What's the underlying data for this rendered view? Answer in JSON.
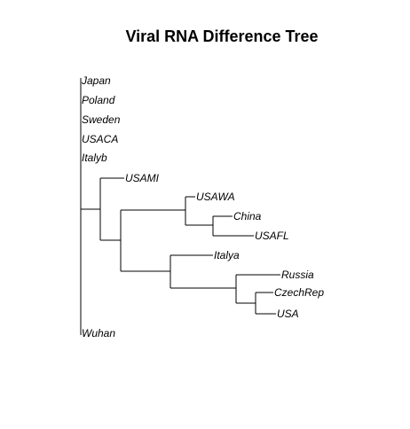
{
  "title": "Viral RNA Difference Tree",
  "line_color": "#000000",
  "leaves": [
    {
      "id": "japan",
      "label": "Japan"
    },
    {
      "id": "poland",
      "label": "Poland"
    },
    {
      "id": "sweden",
      "label": "Sweden"
    },
    {
      "id": "usaca",
      "label": "USACA"
    },
    {
      "id": "italyb",
      "label": "Italyb"
    },
    {
      "id": "usami",
      "label": "USAMI"
    },
    {
      "id": "usawa",
      "label": "USAWA"
    },
    {
      "id": "china",
      "label": "China"
    },
    {
      "id": "usafl",
      "label": "USAFL"
    },
    {
      "id": "italya",
      "label": "Italya"
    },
    {
      "id": "russia",
      "label": "Russia"
    },
    {
      "id": "czechrep",
      "label": "CzechRep"
    },
    {
      "id": "usa",
      "label": "USA"
    },
    {
      "id": "wuhan",
      "label": "Wuhan"
    }
  ]
}
